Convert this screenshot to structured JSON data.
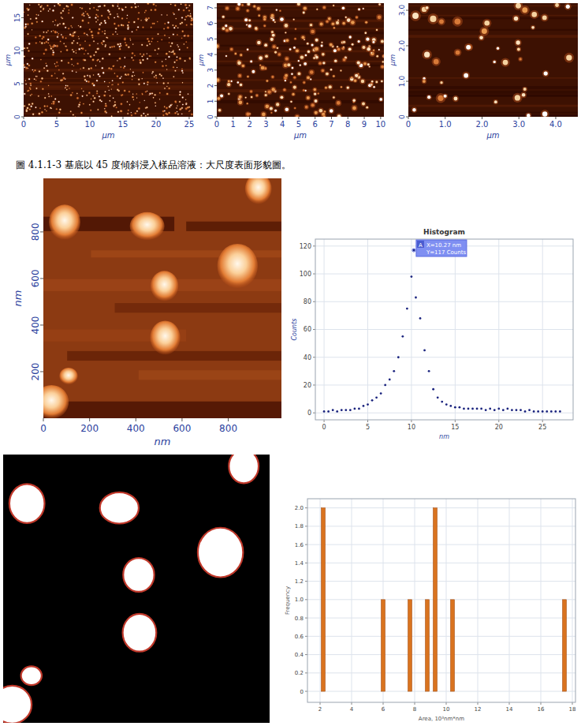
{
  "figure_caption": "圖 4.1.1-3 基底以 45 度傾斜浸入樣品溶液：大尺度表面形貌圖。",
  "afm_panels": [
    {
      "x_label": "μm",
      "y_label": "μm",
      "xlim": [
        0,
        25.6
      ],
      "ylim": [
        0,
        17.2
      ],
      "xticks": [
        0,
        5,
        10,
        15,
        20,
        25
      ],
      "yticks": [
        0,
        5,
        10,
        15
      ]
    },
    {
      "x_label": "μm",
      "y_label": "μm",
      "xlim": [
        0,
        10.2
      ],
      "ylim": [
        0,
        7.3
      ],
      "xticks": [
        0,
        1,
        2,
        3,
        4,
        5,
        6,
        7,
        8,
        9,
        10
      ],
      "yticks": [
        0,
        1,
        2,
        3,
        4,
        5,
        6,
        7
      ]
    },
    {
      "x_label": "μm",
      "y_label": "μm",
      "xlim": [
        0,
        4.6
      ],
      "ylim": [
        0,
        3.2
      ],
      "xticks": [
        0,
        {
          "value": 1,
          "label": "1.0"
        },
        {
          "value": 2,
          "label": "2.0"
        },
        {
          "value": 3,
          "label": "3.0"
        },
        {
          "value": 4,
          "label": "4.0"
        }
      ],
      "yticks": [
        0,
        {
          "value": 1,
          "label": "1.0"
        },
        {
          "value": 2,
          "label": "2.0"
        },
        {
          "value": 3,
          "label": "3.0"
        }
      ]
    }
  ],
  "afm_zoom": {
    "x_label": "nm",
    "y_label": "nm",
    "xlim": [
      0,
      1030
    ],
    "ylim": [
      0,
      1030
    ],
    "xticks": [
      0,
      200,
      400,
      600,
      800
    ],
    "yticks": [
      200,
      400,
      600,
      800
    ],
    "particles": [
      {
        "x": 92,
        "y": 842,
        "w": 136,
        "h": 150
      },
      {
        "x": 449,
        "y": 825,
        "w": 150,
        "h": 120
      },
      {
        "x": 840,
        "y": 654,
        "w": 175,
        "h": 190
      },
      {
        "x": 524,
        "y": 568,
        "w": 120,
        "h": 130
      },
      {
        "x": 527,
        "y": 346,
        "w": 130,
        "h": 145
      },
      {
        "x": 109,
        "y": 181,
        "w": 80,
        "h": 72
      },
      {
        "x": 35,
        "y": 70,
        "w": 150,
        "h": 145
      },
      {
        "x": 930,
        "y": 985,
        "w": 115,
        "h": 130
      }
    ]
  },
  "chart_data": [
    {
      "type": "scatter",
      "title": "Histogram",
      "x_label": "nm",
      "y_label": "Counts",
      "marker": "dot",
      "color": "#1a237e",
      "x": [
        0,
        0.5,
        1,
        1.5,
        2,
        2.5,
        3,
        3.5,
        4,
        4.5,
        5,
        5.5,
        6,
        6.5,
        7,
        7.5,
        8,
        8.5,
        9,
        9.5,
        10,
        10.27,
        10.5,
        11,
        11.5,
        12,
        12.5,
        13,
        13.5,
        14,
        14.5,
        15,
        15.5,
        16,
        16.5,
        17,
        17.5,
        18,
        18.5,
        19,
        19.5,
        20,
        20.5,
        21,
        21.5,
        22,
        22.5,
        23,
        23.5,
        24,
        24.5,
        25,
        25.5,
        26,
        26.5,
        27
      ],
      "values": [
        1,
        1,
        2,
        1,
        2,
        2,
        2,
        3,
        3,
        5,
        6,
        9,
        11,
        14,
        20,
        24,
        30,
        40,
        55,
        75,
        98,
        117,
        83,
        68,
        45,
        30,
        17,
        11,
        8,
        6,
        5,
        4,
        4,
        3,
        3,
        3,
        3,
        3,
        2,
        3,
        2,
        3,
        2,
        3,
        2,
        2,
        2,
        1,
        2,
        1,
        1,
        1,
        1,
        1,
        1,
        1
      ],
      "xlim": [
        -1,
        28.5
      ],
      "ylim": [
        -5,
        125
      ],
      "xticks": [
        0,
        5,
        10,
        15,
        20,
        25
      ],
      "yticks": [
        0,
        20,
        40,
        60,
        80,
        100,
        120
      ],
      "grid": true,
      "annotation": {
        "letter": "A",
        "lines": [
          "X=10.27 nm",
          "Y=117 Counts"
        ],
        "x": 10.27,
        "y": 117
      }
    },
    {
      "type": "bar",
      "x_label": "Area, 10³nm*nm",
      "y_label": "Frequency",
      "color": "#d9731f",
      "x": [
        2.2,
        6.0,
        7.7,
        8.8,
        9.3,
        10.4,
        17.5
      ],
      "values": [
        2,
        1,
        1,
        1,
        2,
        1,
        1
      ],
      "xlim": [
        1.2,
        18.2
      ],
      "ylim": [
        -0.12,
        2.1
      ],
      "xticks": [
        2,
        4,
        6,
        8,
        10,
        12,
        14,
        16,
        18
      ],
      "yticks": [
        0,
        0.2,
        0.4,
        0.6,
        0.8,
        {
          "value": 1,
          "label": "1.0"
        },
        1.2,
        1.4,
        1.6,
        1.8,
        {
          "value": 2,
          "label": "2.0"
        }
      ],
      "grid": true
    }
  ]
}
